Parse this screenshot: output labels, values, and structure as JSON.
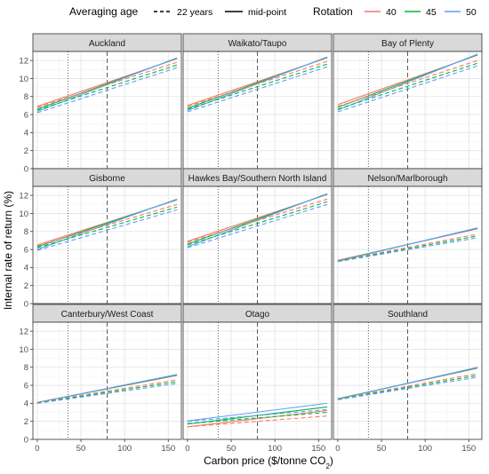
{
  "chart_data": {
    "type": "line",
    "xlabel": "Carbon price ($/tonne CO",
    "xlabel_sub": "2",
    "xlabel_end": ")",
    "ylabel": "Internal rate of return (%)",
    "xlim": [
      -5,
      165
    ],
    "ylim": [
      0,
      13
    ],
    "x_ticks": [
      0,
      50,
      100,
      150
    ],
    "y_ticks": [
      0,
      2,
      4,
      6,
      8,
      10,
      12
    ],
    "reference_lines": [
      {
        "x": 35,
        "style": "dotted"
      },
      {
        "x": 80,
        "style": "dashed"
      }
    ],
    "legend": {
      "position": "top",
      "averaging_title": "Averaging age",
      "averaging_items": [
        {
          "label": "22 years",
          "linetype": "dashed"
        },
        {
          "label": "mid-point",
          "linetype": "solid"
        }
      ],
      "rotation_title": "Rotation",
      "rotation_items": [
        {
          "label": "40",
          "color": "#F8766D"
        },
        {
          "label": "45",
          "color": "#00BA38"
        },
        {
          "label": "50",
          "color": "#619CFF"
        }
      ]
    },
    "x": [
      0,
      160
    ],
    "panels": [
      {
        "name": "Auckland",
        "series": [
          {
            "rotation": "40",
            "averaging": "mid-point",
            "values": [
              6.9,
              12.2
            ]
          },
          {
            "rotation": "45",
            "averaging": "mid-point",
            "values": [
              6.6,
              12.25
            ]
          },
          {
            "rotation": "50",
            "averaging": "mid-point",
            "values": [
              6.35,
              12.3
            ]
          },
          {
            "rotation": "40",
            "averaging": "22 years",
            "values": [
              6.8,
              11.8
            ]
          },
          {
            "rotation": "45",
            "averaging": "22 years",
            "values": [
              6.5,
              11.5
            ]
          },
          {
            "rotation": "50",
            "averaging": "22 years",
            "values": [
              6.2,
              11.2
            ]
          }
        ]
      },
      {
        "name": "Waikato/Taupo",
        "series": [
          {
            "rotation": "40",
            "averaging": "mid-point",
            "values": [
              7.0,
              12.3
            ]
          },
          {
            "rotation": "45",
            "averaging": "mid-point",
            "values": [
              6.7,
              12.35
            ]
          },
          {
            "rotation": "50",
            "averaging": "mid-point",
            "values": [
              6.45,
              12.4
            ]
          },
          {
            "rotation": "40",
            "averaging": "22 years",
            "values": [
              6.9,
              11.9
            ]
          },
          {
            "rotation": "45",
            "averaging": "22 years",
            "values": [
              6.6,
              11.6
            ]
          },
          {
            "rotation": "50",
            "averaging": "22 years",
            "values": [
              6.3,
              11.3
            ]
          }
        ]
      },
      {
        "name": "Bay of Plenty",
        "series": [
          {
            "rotation": "40",
            "averaging": "mid-point",
            "values": [
              7.1,
              12.6
            ]
          },
          {
            "rotation": "45",
            "averaging": "mid-point",
            "values": [
              6.8,
              12.65
            ]
          },
          {
            "rotation": "50",
            "averaging": "mid-point",
            "values": [
              6.5,
              12.7
            ]
          },
          {
            "rotation": "40",
            "averaging": "22 years",
            "values": [
              6.9,
              12.0
            ]
          },
          {
            "rotation": "45",
            "averaging": "22 years",
            "values": [
              6.6,
              11.7
            ]
          },
          {
            "rotation": "50",
            "averaging": "22 years",
            "values": [
              6.3,
              11.4
            ]
          }
        ]
      },
      {
        "name": "Gisborne",
        "series": [
          {
            "rotation": "40",
            "averaging": "mid-point",
            "values": [
              6.5,
              11.5
            ]
          },
          {
            "rotation": "45",
            "averaging": "mid-point",
            "values": [
              6.3,
              11.55
            ]
          },
          {
            "rotation": "50",
            "averaging": "mid-point",
            "values": [
              6.0,
              11.6
            ]
          },
          {
            "rotation": "40",
            "averaging": "22 years",
            "values": [
              6.4,
              11.0
            ]
          },
          {
            "rotation": "45",
            "averaging": "22 years",
            "values": [
              6.2,
              10.7
            ]
          },
          {
            "rotation": "50",
            "averaging": "22 years",
            "values": [
              5.9,
              10.4
            ]
          }
        ]
      },
      {
        "name": "Hawkes Bay/Southern North Island",
        "series": [
          {
            "rotation": "40",
            "averaging": "mid-point",
            "values": [
              6.9,
              12.1
            ]
          },
          {
            "rotation": "45",
            "averaging": "mid-point",
            "values": [
              6.6,
              12.15
            ]
          },
          {
            "rotation": "50",
            "averaging": "mid-point",
            "values": [
              6.3,
              12.2
            ]
          },
          {
            "rotation": "40",
            "averaging": "22 years",
            "values": [
              6.8,
              11.6
            ]
          },
          {
            "rotation": "45",
            "averaging": "22 years",
            "values": [
              6.5,
              11.3
            ]
          },
          {
            "rotation": "50",
            "averaging": "22 years",
            "values": [
              6.2,
              11.0
            ]
          }
        ]
      },
      {
        "name": "Nelson/Marlborough",
        "series": [
          {
            "rotation": "40",
            "averaging": "mid-point",
            "values": [
              4.8,
              8.3
            ]
          },
          {
            "rotation": "45",
            "averaging": "mid-point",
            "values": [
              4.75,
              8.35
            ]
          },
          {
            "rotation": "50",
            "averaging": "mid-point",
            "values": [
              4.7,
              8.4
            ]
          },
          {
            "rotation": "40",
            "averaging": "22 years",
            "values": [
              4.75,
              7.7
            ]
          },
          {
            "rotation": "45",
            "averaging": "22 years",
            "values": [
              4.7,
              7.5
            ]
          },
          {
            "rotation": "50",
            "averaging": "22 years",
            "values": [
              4.65,
              7.3
            ]
          }
        ]
      },
      {
        "name": "Canterbury/West Coast",
        "series": [
          {
            "rotation": "40",
            "averaging": "mid-point",
            "values": [
              4.1,
              7.1
            ]
          },
          {
            "rotation": "45",
            "averaging": "mid-point",
            "values": [
              4.1,
              7.15
            ]
          },
          {
            "rotation": "50",
            "averaging": "mid-point",
            "values": [
              4.1,
              7.2
            ]
          },
          {
            "rotation": "40",
            "averaging": "22 years",
            "values": [
              4.1,
              6.6
            ]
          },
          {
            "rotation": "45",
            "averaging": "22 years",
            "values": [
              4.05,
              6.4
            ]
          },
          {
            "rotation": "50",
            "averaging": "22 years",
            "values": [
              4.0,
              6.2
            ]
          }
        ]
      },
      {
        "name": "Otago",
        "series": [
          {
            "rotation": "40",
            "averaging": "mid-point",
            "values": [
              1.4,
              3.2
            ]
          },
          {
            "rotation": "45",
            "averaging": "mid-point",
            "values": [
              1.7,
              3.6
            ]
          },
          {
            "rotation": "50",
            "averaging": "mid-point",
            "values": [
              2.05,
              4.0
            ]
          },
          {
            "rotation": "40",
            "averaging": "22 years",
            "values": [
              1.4,
              2.6
            ]
          },
          {
            "rotation": "45",
            "averaging": "22 years",
            "values": [
              1.75,
              3.0
            ]
          },
          {
            "rotation": "50",
            "averaging": "22 years",
            "values": [
              2.0,
              3.3
            ]
          }
        ]
      },
      {
        "name": "Southland",
        "series": [
          {
            "rotation": "40",
            "averaging": "mid-point",
            "values": [
              4.5,
              7.9
            ]
          },
          {
            "rotation": "45",
            "averaging": "mid-point",
            "values": [
              4.5,
              7.95
            ]
          },
          {
            "rotation": "50",
            "averaging": "mid-point",
            "values": [
              4.45,
              8.0
            ]
          },
          {
            "rotation": "40",
            "averaging": "22 years",
            "values": [
              4.5,
              7.3
            ]
          },
          {
            "rotation": "45",
            "averaging": "22 years",
            "values": [
              4.45,
              7.1
            ]
          },
          {
            "rotation": "50",
            "averaging": "22 years",
            "values": [
              4.4,
              6.9
            ]
          }
        ]
      }
    ]
  }
}
